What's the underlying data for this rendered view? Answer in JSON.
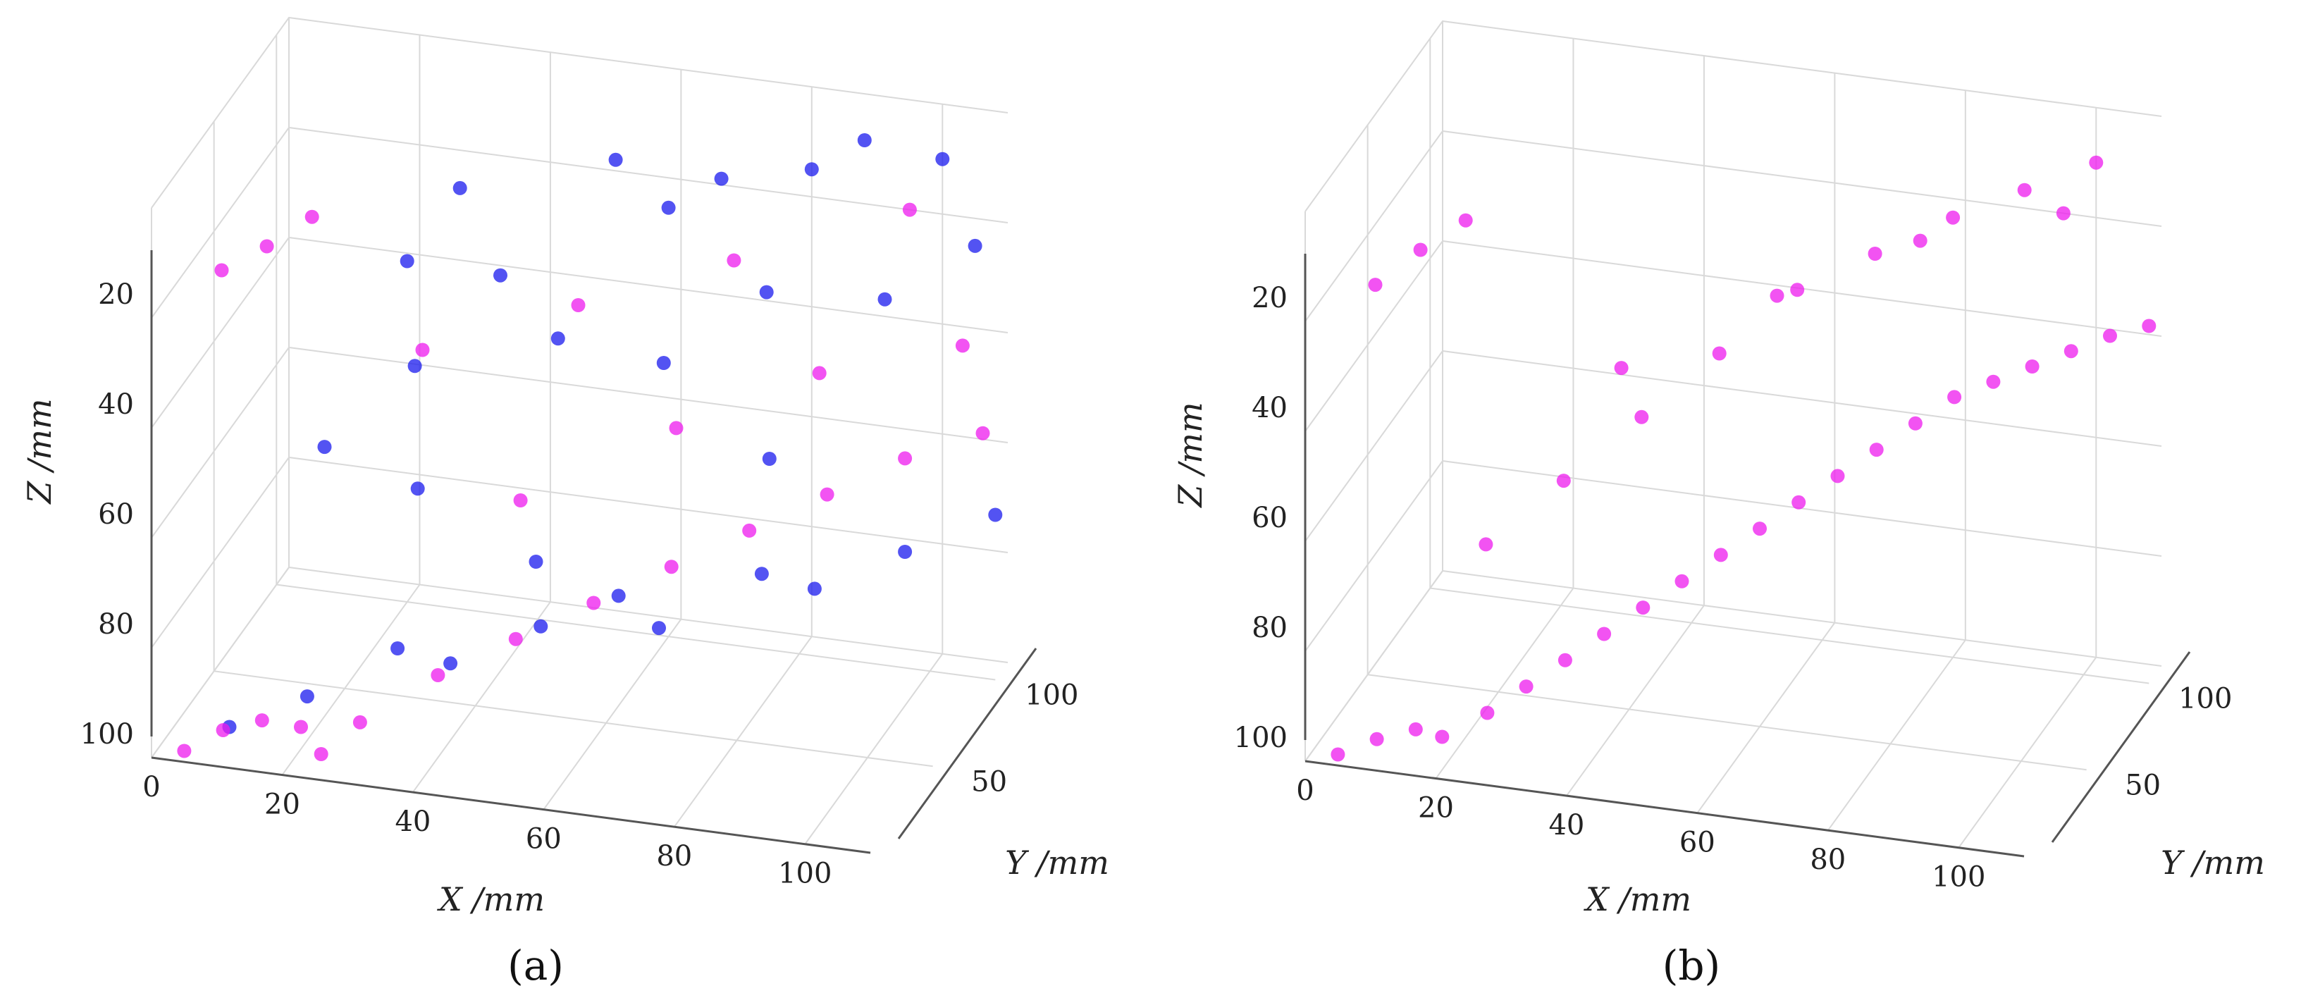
{
  "chart_data": [
    {
      "type": "scatter",
      "projection": "3d",
      "panel_label": "(a)",
      "xlabel": "X /mm",
      "ylabel": "Y /mm",
      "zlabel": "Z /mm",
      "x_ticks": [
        "0",
        "20",
        "40",
        "60",
        "80",
        "100"
      ],
      "y_ticks": [
        "50",
        "100"
      ],
      "z_ticks": [
        "20",
        "40",
        "60",
        "80",
        "100"
      ],
      "xlim": [
        0,
        110
      ],
      "ylim": [
        0,
        110
      ],
      "zlim": [
        0,
        100
      ],
      "z_axis_inverted": true,
      "grid": true,
      "colors": {
        "series_1": "#1a1aee",
        "series_2": "#ee1aee"
      },
      "series": [
        {
          "points": [
            [
              10,
              10,
              96
            ],
            [
              20,
              20,
              92
            ],
            [
              30,
              40,
              88
            ],
            [
              40,
              30,
              86
            ],
            [
              50,
              50,
              84
            ],
            [
              60,
              60,
              80
            ],
            [
              70,
              40,
              78
            ],
            [
              80,
              70,
              76
            ],
            [
              90,
              60,
              74
            ],
            [
              100,
              80,
              72
            ],
            [
              110,
              100,
              70
            ],
            [
              15,
              60,
              60
            ],
            [
              25,
              80,
              50
            ],
            [
              35,
              30,
              55
            ],
            [
              45,
              90,
              45
            ],
            [
              55,
              20,
              62
            ],
            [
              65,
              70,
              40
            ],
            [
              75,
              100,
              35
            ],
            [
              85,
              50,
              48
            ],
            [
              95,
              90,
              30
            ],
            [
              105,
              110,
              25
            ],
            [
              20,
              100,
              38
            ],
            [
              40,
              70,
              28
            ],
            [
              60,
              100,
              22
            ],
            [
              80,
              110,
              15
            ],
            [
              100,
              110,
              10
            ],
            [
              30,
              90,
              20
            ],
            [
              50,
              110,
              18
            ],
            [
              70,
              90,
              12
            ],
            [
              90,
              100,
              5
            ]
          ]
        },
        {
          "points": [
            [
              5,
              0,
              98
            ],
            [
              10,
              5,
              95
            ],
            [
              15,
              10,
              94
            ],
            [
              20,
              15,
              96
            ],
            [
              25,
              5,
              97
            ],
            [
              30,
              10,
              92
            ],
            [
              40,
              20,
              85
            ],
            [
              50,
              30,
              80
            ],
            [
              60,
              40,
              75
            ],
            [
              70,
              50,
              70
            ],
            [
              80,
              60,
              65
            ],
            [
              90,
              70,
              60
            ],
            [
              100,
              80,
              55
            ],
            [
              110,
              90,
              52
            ],
            [
              45,
              60,
              65
            ],
            [
              65,
              80,
              55
            ],
            [
              85,
              90,
              45
            ],
            [
              105,
              100,
              40
            ],
            [
              5,
              30,
              20
            ],
            [
              10,
              40,
              18
            ],
            [
              15,
              50,
              15
            ],
            [
              30,
              60,
              40
            ],
            [
              50,
              80,
              35
            ],
            [
              70,
              100,
              30
            ],
            [
              95,
              110,
              20
            ]
          ]
        }
      ]
    },
    {
      "type": "scatter",
      "projection": "3d",
      "panel_label": "(b)",
      "xlabel": "X /mm",
      "ylabel": "Y /mm",
      "zlabel": "Z /mm",
      "x_ticks": [
        "0",
        "20",
        "40",
        "60",
        "80",
        "100"
      ],
      "y_ticks": [
        "50",
        "100"
      ],
      "z_ticks": [
        "20",
        "40",
        "60",
        "80",
        "100"
      ],
      "xlim": [
        0,
        110
      ],
      "ylim": [
        0,
        110
      ],
      "zlim": [
        0,
        100
      ],
      "z_axis_inverted": true,
      "grid": true,
      "colors": {
        "series_1": "#ee1aee"
      },
      "series": [
        {
          "points": [
            [
              5,
              0,
              98
            ],
            [
              10,
              5,
              96
            ],
            [
              15,
              10,
              95
            ],
            [
              20,
              5,
              94
            ],
            [
              25,
              15,
              92
            ],
            [
              30,
              20,
              88
            ],
            [
              35,
              25,
              84
            ],
            [
              40,
              30,
              80
            ],
            [
              45,
              35,
              76
            ],
            [
              50,
              40,
              72
            ],
            [
              55,
              45,
              68
            ],
            [
              60,
              50,
              64
            ],
            [
              65,
              55,
              60
            ],
            [
              70,
              60,
              56
            ],
            [
              75,
              65,
              52
            ],
            [
              80,
              70,
              48
            ],
            [
              85,
              75,
              44
            ],
            [
              90,
              80,
              42
            ],
            [
              95,
              85,
              40
            ],
            [
              100,
              90,
              38
            ],
            [
              105,
              95,
              36
            ],
            [
              110,
              100,
              35
            ],
            [
              20,
              40,
              70
            ],
            [
              30,
              50,
              60
            ],
            [
              40,
              60,
              50
            ],
            [
              50,
              70,
              40
            ],
            [
              60,
              80,
              30
            ],
            [
              70,
              90,
              25
            ],
            [
              80,
              100,
              20
            ],
            [
              90,
              105,
              15
            ],
            [
              100,
              110,
              10
            ],
            [
              5,
              30,
              22
            ],
            [
              10,
              40,
              18
            ],
            [
              15,
              50,
              15
            ],
            [
              35,
              70,
              45
            ],
            [
              55,
              90,
              35
            ],
            [
              75,
              100,
              25
            ],
            [
              95,
              110,
              20
            ]
          ]
        }
      ]
    }
  ]
}
